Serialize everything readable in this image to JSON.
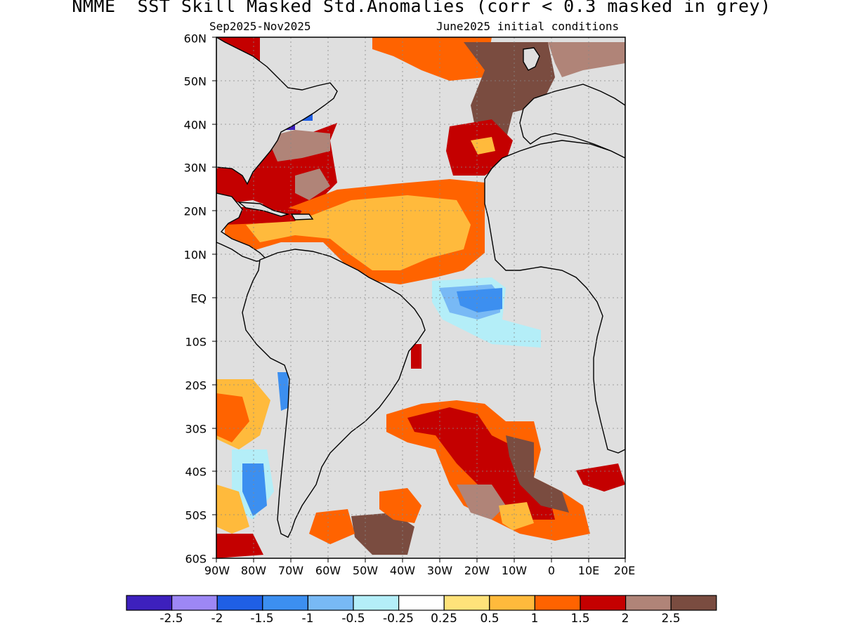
{
  "title": "NMME  SST Skill Masked Std.Anomalies (corr < 0.3 masked in grey)",
  "subtitle_left": "Sep2025-Nov2025",
  "subtitle_right": "June2025 initial conditions",
  "lat_labels": [
    "60N",
    "50N",
    "40N",
    "30N",
    "20N",
    "10N",
    "EQ",
    "10S",
    "20S",
    "30S",
    "40S",
    "50S",
    "60S"
  ],
  "lon_labels": [
    "90W",
    "80W",
    "70W",
    "60W",
    "50W",
    "40W",
    "30W",
    "20W",
    "10W",
    "0",
    "10E",
    "20E"
  ],
  "colorbar": {
    "colors": [
      "#3d20bd",
      "#9d87f5",
      "#1f5fe5",
      "#3c8ff0",
      "#78b9f5",
      "#b4eef8",
      "#ffffff",
      "#ffe27a",
      "#ffba3c",
      "#ff6300",
      "#c40000",
      "#b08478",
      "#7a4c40"
    ],
    "tick_labels": [
      "-2.5",
      "-2",
      "-1.5",
      "-1",
      "-0.5",
      "-0.25",
      "0.25",
      "0.5",
      "1",
      "1.5",
      "2",
      "2.5"
    ]
  },
  "map_colors": {
    "masked": "#dfdfdf",
    "land_outline": "#000000"
  }
}
